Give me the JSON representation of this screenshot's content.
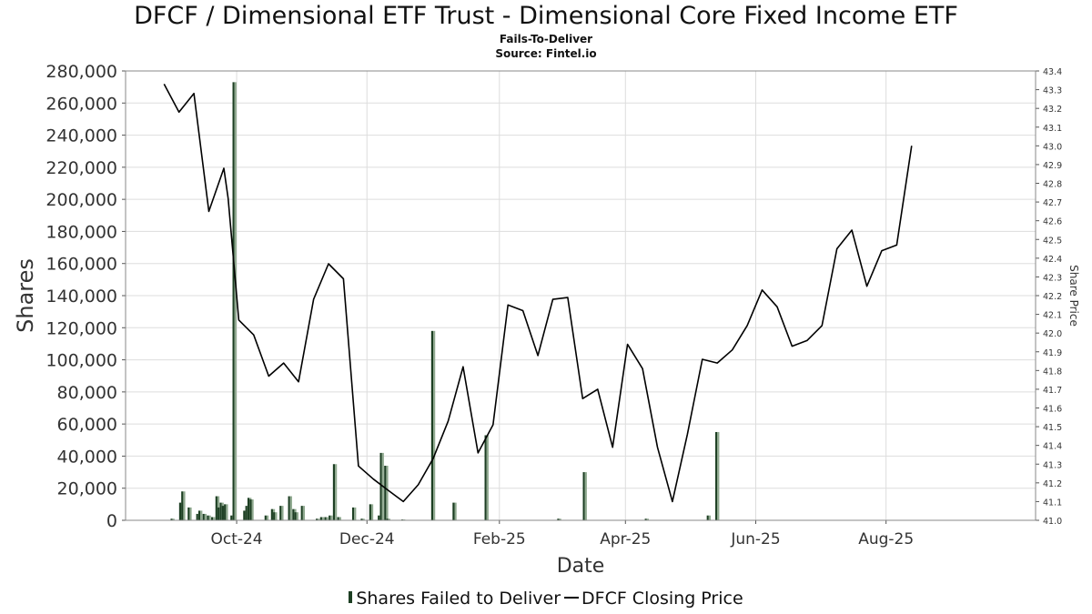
{
  "header": {
    "title": "DFCF / Dimensional ETF Trust - Dimensional Core Fixed Income ETF",
    "subtitle": "Fails-To-Deliver",
    "source": "Source: Fintel.io"
  },
  "legend": {
    "bars_label": "Shares Failed to Deliver",
    "line_label": "DFCF Closing Price"
  },
  "colors": {
    "bar_dark": "#1d3f23",
    "bar_light": "#8fa98f",
    "line": "#000000",
    "grid": "#dddddd",
    "frame": "#888888"
  },
  "chart_data": {
    "type": "bar+line",
    "xlabel": "Date",
    "ylabel": "Shares",
    "y2label": "Share Price",
    "x_range": [
      "2024-08-10",
      "2025-10-10"
    ],
    "x_ticks": [
      {
        "date": "2024-10-01",
        "label": "Oct-24"
      },
      {
        "date": "2024-12-01",
        "label": "Dec-24"
      },
      {
        "date": "2025-02-01",
        "label": "Feb-25"
      },
      {
        "date": "2025-04-01",
        "label": "Apr-25"
      },
      {
        "date": "2025-06-01",
        "label": "Jun-25"
      },
      {
        "date": "2025-08-01",
        "label": "Aug-25"
      }
    ],
    "ylim": [
      0,
      280000
    ],
    "y_ticks": [
      "0",
      "20,000",
      "40,000",
      "60,000",
      "80,000",
      "100,000",
      "120,000",
      "140,000",
      "160,000",
      "180,000",
      "200,000",
      "220,000",
      "240,000",
      "260,000",
      "280,000"
    ],
    "y2lim": [
      41.0,
      43.4
    ],
    "y2_ticks": [
      "41.0",
      "41.1",
      "41.2",
      "41.3",
      "41.4",
      "41.5",
      "41.6",
      "41.7",
      "41.8",
      "41.9",
      "42.0",
      "42.1",
      "42.2",
      "42.3",
      "42.4",
      "42.5",
      "42.6",
      "42.7",
      "42.8",
      "42.9",
      "43.0",
      "43.1",
      "43.2",
      "43.3",
      "43.4"
    ],
    "grid": true,
    "legend_position": "bottom-center",
    "bars": [
      {
        "date": "2024-09-01",
        "value": 1000
      },
      {
        "date": "2024-09-05",
        "value": 11000
      },
      {
        "date": "2024-09-06",
        "value": 18000
      },
      {
        "date": "2024-09-09",
        "value": 8000
      },
      {
        "date": "2024-09-13",
        "value": 4000
      },
      {
        "date": "2024-09-14",
        "value": 6000
      },
      {
        "date": "2024-09-16",
        "value": 4000
      },
      {
        "date": "2024-09-18",
        "value": 3000
      },
      {
        "date": "2024-09-20",
        "value": 2000
      },
      {
        "date": "2024-09-22",
        "value": 15000
      },
      {
        "date": "2024-09-23",
        "value": 8000
      },
      {
        "date": "2024-09-24",
        "value": 11000
      },
      {
        "date": "2024-09-25",
        "value": 9000
      },
      {
        "date": "2024-09-26",
        "value": 10000
      },
      {
        "date": "2024-09-29",
        "value": 3000
      },
      {
        "date": "2024-09-30",
        "value": 273000
      },
      {
        "date": "2024-10-05",
        "value": 6000
      },
      {
        "date": "2024-10-06",
        "value": 9000
      },
      {
        "date": "2024-10-07",
        "value": 14000
      },
      {
        "date": "2024-10-08",
        "value": 13000
      },
      {
        "date": "2024-10-15",
        "value": 3000
      },
      {
        "date": "2024-10-18",
        "value": 7000
      },
      {
        "date": "2024-10-19",
        "value": 5000
      },
      {
        "date": "2024-10-22",
        "value": 9000
      },
      {
        "date": "2024-10-26",
        "value": 15000
      },
      {
        "date": "2024-10-28",
        "value": 7000
      },
      {
        "date": "2024-10-29",
        "value": 5000
      },
      {
        "date": "2024-11-01",
        "value": 9000
      },
      {
        "date": "2024-11-08",
        "value": 1000
      },
      {
        "date": "2024-11-10",
        "value": 2000
      },
      {
        "date": "2024-11-12",
        "value": 2000
      },
      {
        "date": "2024-11-14",
        "value": 3000
      },
      {
        "date": "2024-11-16",
        "value": 35000
      },
      {
        "date": "2024-11-18",
        "value": 2000
      },
      {
        "date": "2024-11-25",
        "value": 8000
      },
      {
        "date": "2024-11-29",
        "value": 1000
      },
      {
        "date": "2024-12-03",
        "value": 10000
      },
      {
        "date": "2024-12-07",
        "value": 3000
      },
      {
        "date": "2024-12-08",
        "value": 42000
      },
      {
        "date": "2024-12-10",
        "value": 34000
      },
      {
        "date": "2024-12-11",
        "value": 1000
      },
      {
        "date": "2024-12-18",
        "value": 500
      },
      {
        "date": "2025-01-01",
        "value": 118000
      },
      {
        "date": "2025-01-11",
        "value": 11000
      },
      {
        "date": "2025-01-26",
        "value": 53000
      },
      {
        "date": "2025-03-01",
        "value": 1000
      },
      {
        "date": "2025-03-13",
        "value": 30000
      },
      {
        "date": "2025-04-11",
        "value": 1000
      },
      {
        "date": "2025-05-10",
        "value": 3000
      },
      {
        "date": "2025-05-14",
        "value": 55000
      }
    ],
    "line": [
      {
        "date": "2024-08-28",
        "price": 43.33
      },
      {
        "date": "2024-09-04",
        "price": 43.18
      },
      {
        "date": "2024-09-11",
        "price": 43.28
      },
      {
        "date": "2024-09-18",
        "price": 42.65
      },
      {
        "date": "2024-09-25",
        "price": 42.88
      },
      {
        "date": "2024-09-27",
        "price": 42.72
      },
      {
        "date": "2024-10-02",
        "price": 42.07
      },
      {
        "date": "2024-10-09",
        "price": 41.99
      },
      {
        "date": "2024-10-16",
        "price": 41.77
      },
      {
        "date": "2024-10-23",
        "price": 41.84
      },
      {
        "date": "2024-10-30",
        "price": 41.74
      },
      {
        "date": "2024-11-06",
        "price": 42.18
      },
      {
        "date": "2024-11-13",
        "price": 42.37
      },
      {
        "date": "2024-11-20",
        "price": 42.29
      },
      {
        "date": "2024-11-27",
        "price": 41.29
      },
      {
        "date": "2024-12-04",
        "price": 41.22
      },
      {
        "date": "2024-12-11",
        "price": 41.16
      },
      {
        "date": "2024-12-18",
        "price": 41.1
      },
      {
        "date": "2024-12-25",
        "price": 41.19
      },
      {
        "date": "2025-01-01",
        "price": 41.33
      },
      {
        "date": "2025-01-08",
        "price": 41.53
      },
      {
        "date": "2025-01-15",
        "price": 41.82
      },
      {
        "date": "2025-01-22",
        "price": 41.36
      },
      {
        "date": "2025-01-29",
        "price": 41.51
      },
      {
        "date": "2025-02-05",
        "price": 42.15
      },
      {
        "date": "2025-02-12",
        "price": 42.12
      },
      {
        "date": "2025-02-19",
        "price": 41.88
      },
      {
        "date": "2025-02-26",
        "price": 42.18
      },
      {
        "date": "2025-03-05",
        "price": 42.19
      },
      {
        "date": "2025-03-12",
        "price": 41.65
      },
      {
        "date": "2025-03-19",
        "price": 41.7
      },
      {
        "date": "2025-03-26",
        "price": 41.39
      },
      {
        "date": "2025-04-02",
        "price": 41.94
      },
      {
        "date": "2025-04-09",
        "price": 41.81
      },
      {
        "date": "2025-04-16",
        "price": 41.39
      },
      {
        "date": "2025-04-23",
        "price": 41.1
      },
      {
        "date": "2025-04-30",
        "price": 41.46
      },
      {
        "date": "2025-05-07",
        "price": 41.86
      },
      {
        "date": "2025-05-14",
        "price": 41.84
      },
      {
        "date": "2025-05-21",
        "price": 41.91
      },
      {
        "date": "2025-05-28",
        "price": 42.04
      },
      {
        "date": "2025-06-04",
        "price": 42.23
      },
      {
        "date": "2025-06-11",
        "price": 42.14
      },
      {
        "date": "2025-06-18",
        "price": 41.93
      },
      {
        "date": "2025-06-25",
        "price": 41.96
      },
      {
        "date": "2025-07-02",
        "price": 42.04
      },
      {
        "date": "2025-07-09",
        "price": 42.45
      },
      {
        "date": "2025-07-16",
        "price": 42.55
      },
      {
        "date": "2025-07-23",
        "price": 42.25
      },
      {
        "date": "2025-07-30",
        "price": 42.44
      },
      {
        "date": "2025-08-06",
        "price": 42.47
      },
      {
        "date": "2025-08-13",
        "price": 43.0
      }
    ]
  }
}
